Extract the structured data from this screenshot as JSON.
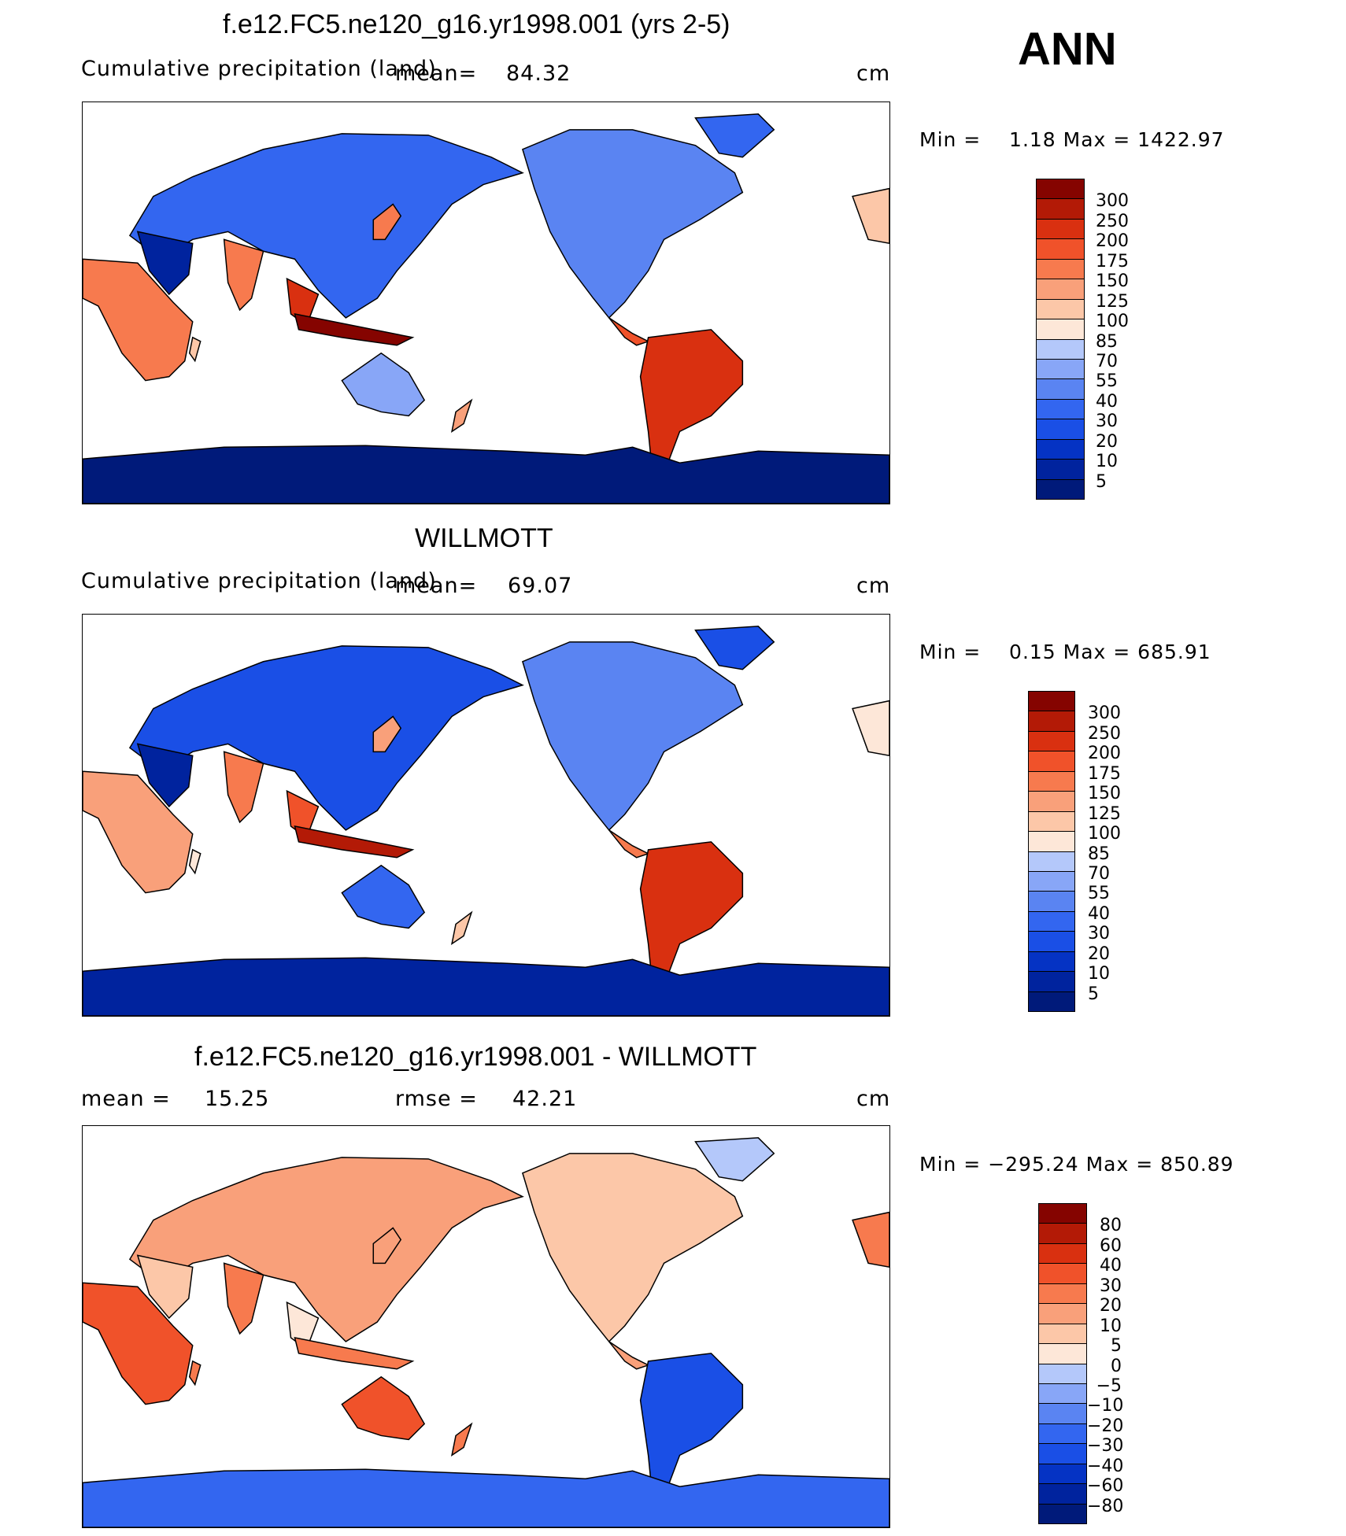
{
  "season": "ANN",
  "palette_abs": [
    "#001a7a",
    "#00239e",
    "#0533c4",
    "#1a4fe6",
    "#3366f0",
    "#5a84f2",
    "#88a6f7",
    "#b4c8fa",
    "#d8e6fc",
    "#fde7d8",
    "#fcc7a8",
    "#f9a07a",
    "#f77a4e",
    "#f0522a",
    "#d93010",
    "#b31a06",
    "#850400"
  ],
  "palette_diff": [
    "#001a7a",
    "#00239e",
    "#0533c4",
    "#1a4fe6",
    "#3366f0",
    "#5a84f2",
    "#88a6f7",
    "#b4c8fa",
    "#d8e6fc",
    "#fde7d8",
    "#fcc7a8",
    "#f9a07a",
    "#f77a4e",
    "#f0522a",
    "#d93010",
    "#b31a06",
    "#850400"
  ],
  "panels": [
    {
      "title": "f.e12.FC5.ne120_g16.yr1998.001 (yrs 2-5)",
      "subtitle_left": "Cumulative precipitation (land)",
      "stat1_label": "mean=",
      "stat1_value": "84.32",
      "units": "cm",
      "minmax": "Min =    1.18 Max = 1422.97",
      "colorbar": [
        "300",
        "250",
        "200",
        "175",
        "150",
        "125",
        "100",
        "85",
        "70",
        "55",
        "40",
        "30",
        "20",
        "10",
        "5"
      ]
    },
    {
      "title": "WILLMOTT",
      "subtitle_left": "Cumulative precipitation (land)",
      "stat1_label": "mean=",
      "stat1_value": "69.07",
      "units": "cm",
      "minmax": "Min =    0.15 Max = 685.91",
      "colorbar": [
        "300",
        "250",
        "200",
        "175",
        "150",
        "125",
        "100",
        "85",
        "70",
        "55",
        "40",
        "30",
        "20",
        "10",
        "5"
      ]
    },
    {
      "title": "f.e12.FC5.ne120_g16.yr1998.001 - WILLMOTT",
      "stat1_label": "mean =",
      "stat1_value": "15.25",
      "stat2_label": "rmse =",
      "stat2_value": "42.21",
      "units": "cm",
      "minmax": "Min = −295.24 Max = 850.89",
      "colorbar": [
        "80",
        "60",
        "40",
        "30",
        "20",
        "10",
        "5",
        "0",
        "−5",
        "−10",
        "−20",
        "−30",
        "−40",
        "−60",
        "−80"
      ]
    }
  ],
  "chart_data": [
    {
      "type": "heatmap",
      "title": "f.e12.FC5.ne120_g16.yr1998.001 (yrs 2-5)",
      "variable": "Cumulative precipitation (land)",
      "units": "cm",
      "mean": 84.32,
      "min": 1.18,
      "max": 1422.97,
      "contour_levels": [
        5,
        10,
        20,
        30,
        40,
        55,
        70,
        85,
        100,
        125,
        150,
        175,
        200,
        250,
        300
      ]
    },
    {
      "type": "heatmap",
      "title": "WILLMOTT",
      "variable": "Cumulative precipitation (land)",
      "units": "cm",
      "mean": 69.07,
      "min": 0.15,
      "max": 685.91,
      "contour_levels": [
        5,
        10,
        20,
        30,
        40,
        55,
        70,
        85,
        100,
        125,
        150,
        175,
        200,
        250,
        300
      ]
    },
    {
      "type": "heatmap",
      "title": "f.e12.FC5.ne120_g16.yr1998.001 - WILLMOTT",
      "units": "cm",
      "mean": 15.25,
      "rmse": 42.21,
      "min": -295.24,
      "max": 850.89,
      "contour_levels": [
        -80,
        -60,
        -40,
        -30,
        -20,
        -10,
        -5,
        0,
        5,
        10,
        20,
        30,
        40,
        60,
        80
      ]
    }
  ]
}
